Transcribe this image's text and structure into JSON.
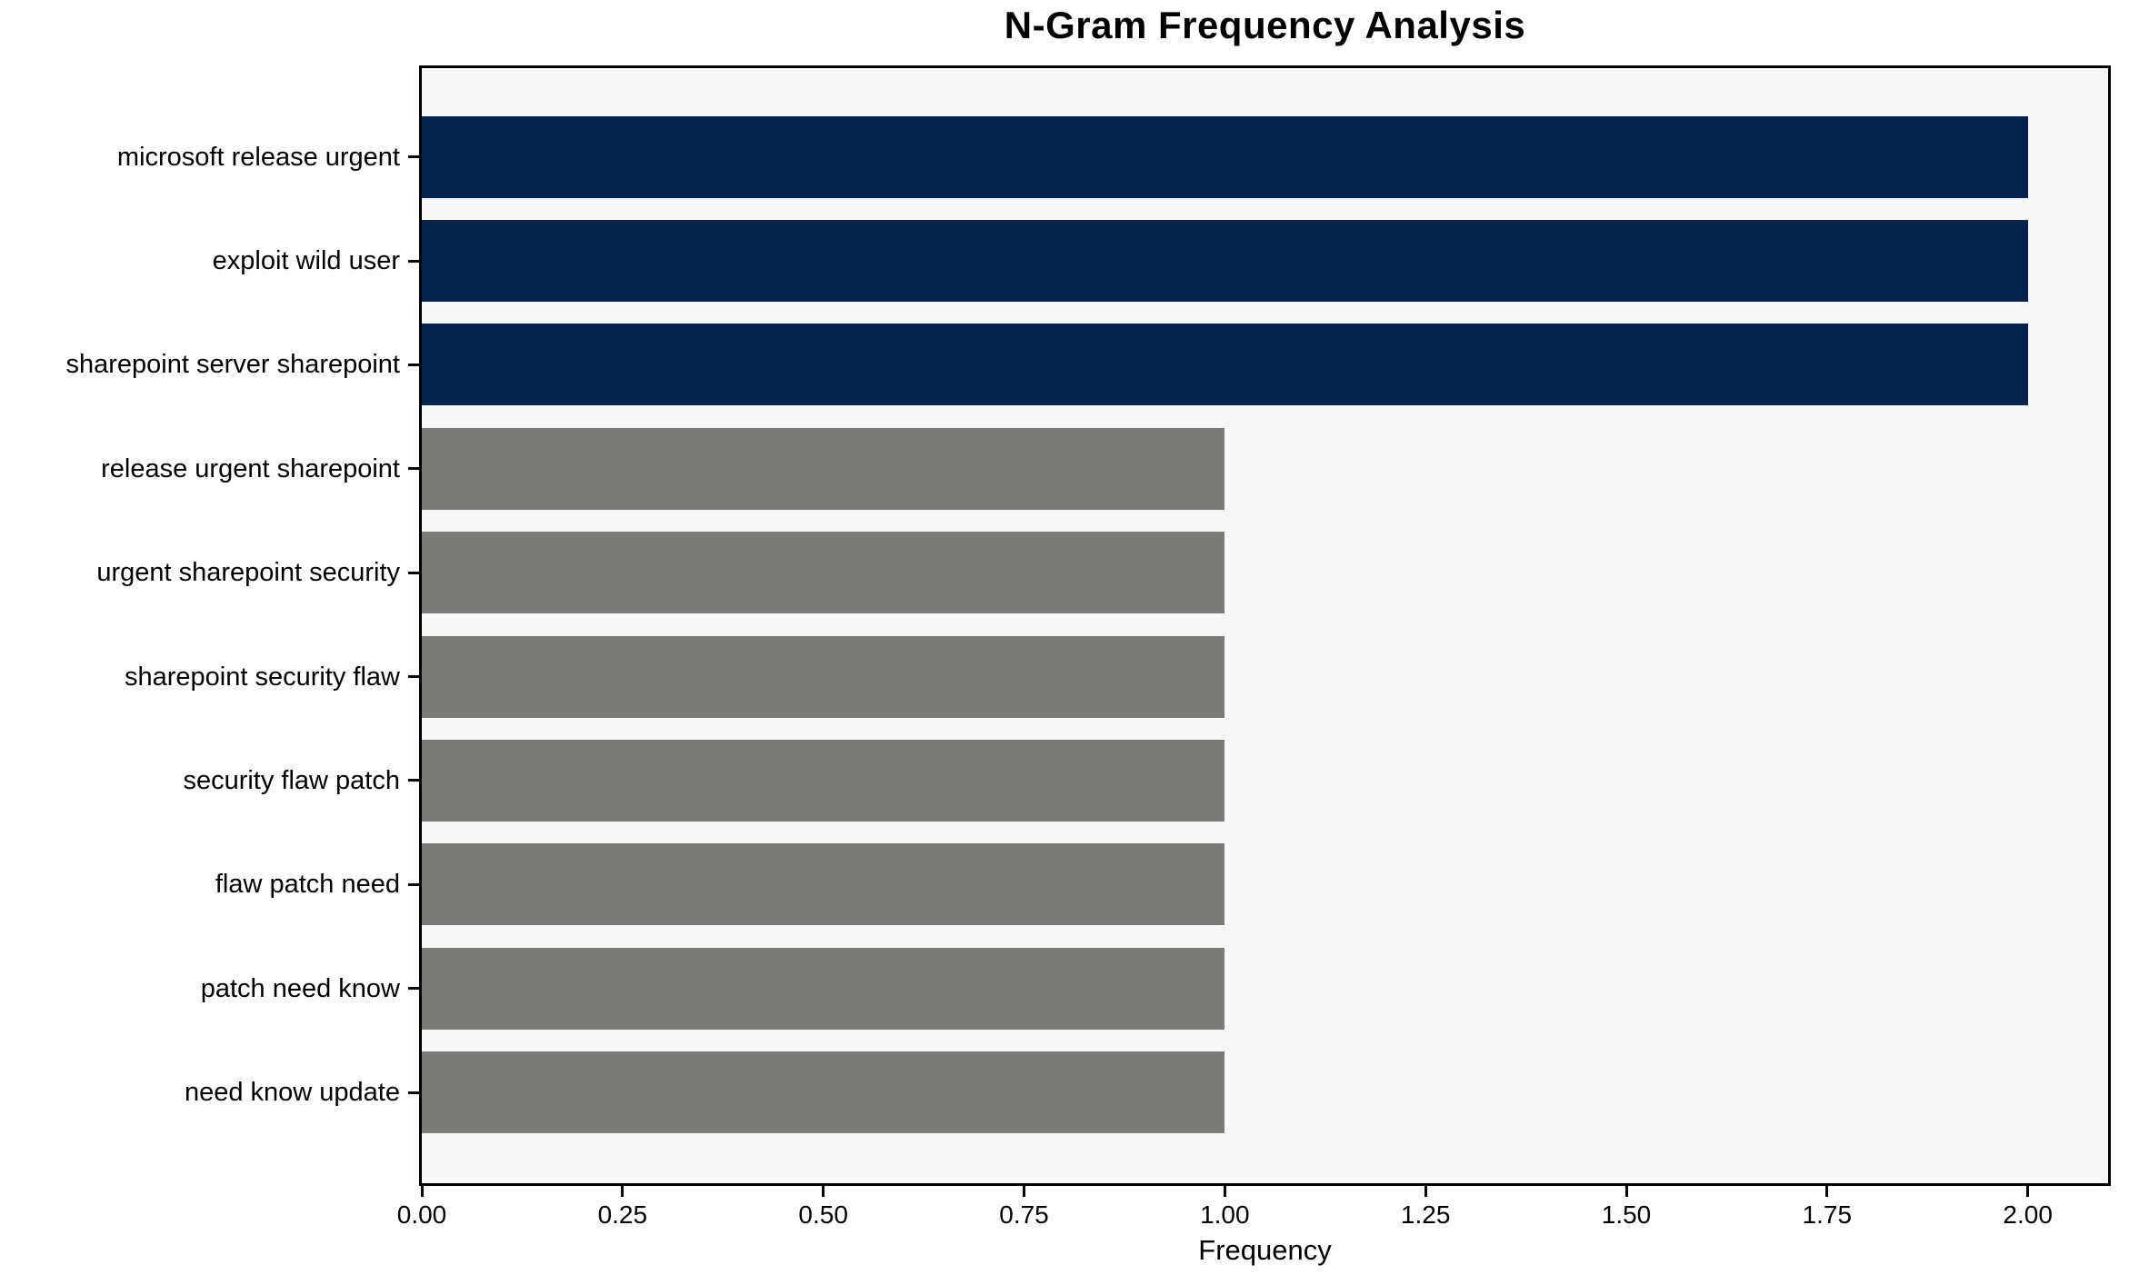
{
  "chart_data": {
    "type": "bar",
    "orientation": "horizontal",
    "title": "N-Gram Frequency Analysis",
    "xlabel": "Frequency",
    "ylabel": "",
    "categories": [
      "microsoft release urgent",
      "exploit wild user",
      "sharepoint server sharepoint",
      "release urgent sharepoint",
      "urgent sharepoint security",
      "sharepoint security flaw",
      "security flaw patch",
      "flaw patch need",
      "patch need know",
      "need know update"
    ],
    "values": [
      2,
      2,
      2,
      1,
      1,
      1,
      1,
      1,
      1,
      1
    ],
    "bar_colors": [
      "#03224c",
      "#03224c",
      "#03224c",
      "#7b7b77",
      "#7b7b77",
      "#7b7b77",
      "#7b7b77",
      "#7b7b77",
      "#7b7b77",
      "#7b7b77"
    ],
    "xlim": [
      0,
      2.1
    ],
    "xticks": [
      "0.00",
      "0.25",
      "0.50",
      "0.75",
      "1.00",
      "1.25",
      "1.50",
      "1.75",
      "2.00"
    ],
    "xtick_values": [
      0,
      0.25,
      0.5,
      0.75,
      1.0,
      1.25,
      1.5,
      1.75,
      2.0
    ],
    "grid": false,
    "legend": null,
    "plot_background": "#f7f7f7",
    "figure_background": "#ffffff",
    "spine_color": "#000000"
  }
}
